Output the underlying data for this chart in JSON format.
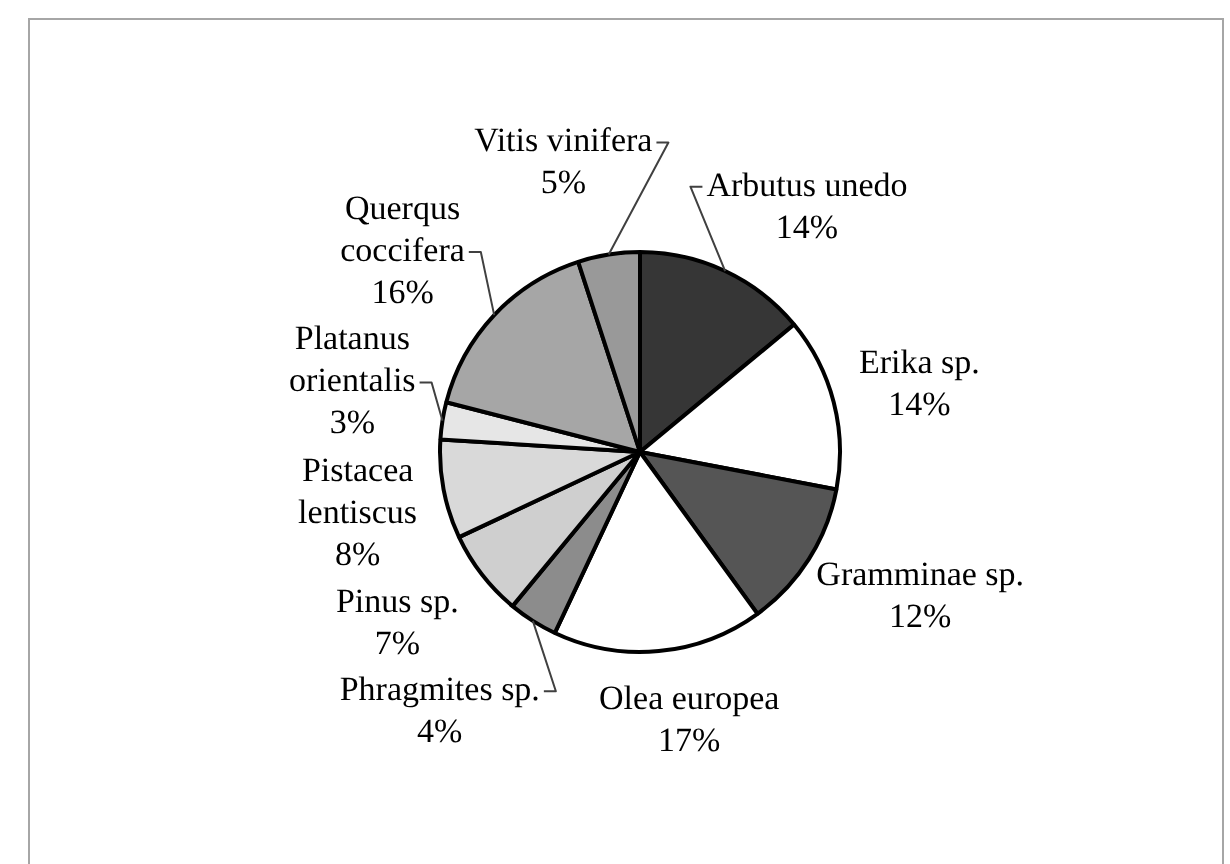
{
  "chart_data": {
    "type": "pie",
    "categories": [
      "Arbutus unedo",
      "Erika sp.",
      "Gramminae sp.",
      "Olea europea",
      "Phragmites sp.",
      "Pinus sp.",
      "Pistacea lentiscus",
      "Platanus orientalis",
      "Querqus coccifera",
      "Vitis vinifera"
    ],
    "values": [
      14,
      14,
      12,
      17,
      4,
      7,
      8,
      3,
      16,
      5
    ],
    "value_labels": [
      "14%",
      "14%",
      "12%",
      "17%",
      "4%",
      "7%",
      "8%",
      "3%",
      "16%",
      "5%"
    ],
    "colors": [
      "#363636",
      "#ffffff",
      "#555555",
      "#ffffff",
      "#8c8c8c",
      "#cfcfcf",
      "#d9d9d9",
      "#e6e6e6",
      "#a6a6a6",
      "#999999"
    ],
    "legend": false
  }
}
